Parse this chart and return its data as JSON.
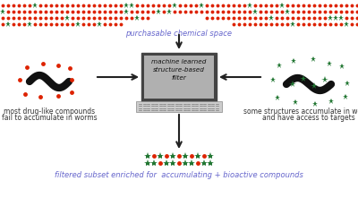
{
  "bg_color": "#ffffff",
  "title_color": "#6666cc",
  "red_dot_color": "#dd2200",
  "green_star_color": "#227733",
  "arrow_color": "#222222",
  "worm_color": "#111111",
  "laptop_screen_bg": "#b0b0b0",
  "laptop_frame_color": "#444444",
  "laptop_keyboard_color": "#cccccc",
  "text_color": "#333333",
  "top_label": "purchasable chemical space",
  "left_label1": "most drug-like compounds",
  "left_label2": "fail to accumulate in worms",
  "right_label1": "some structures accumulate in worms",
  "right_label2": "and have access to targets",
  "bottom_label": "filtered subset enriched for  accumulating + bioactive compounds",
  "filter_line1": "machine learned",
  "filter_line2": "structure-based",
  "filter_line3": "filter"
}
